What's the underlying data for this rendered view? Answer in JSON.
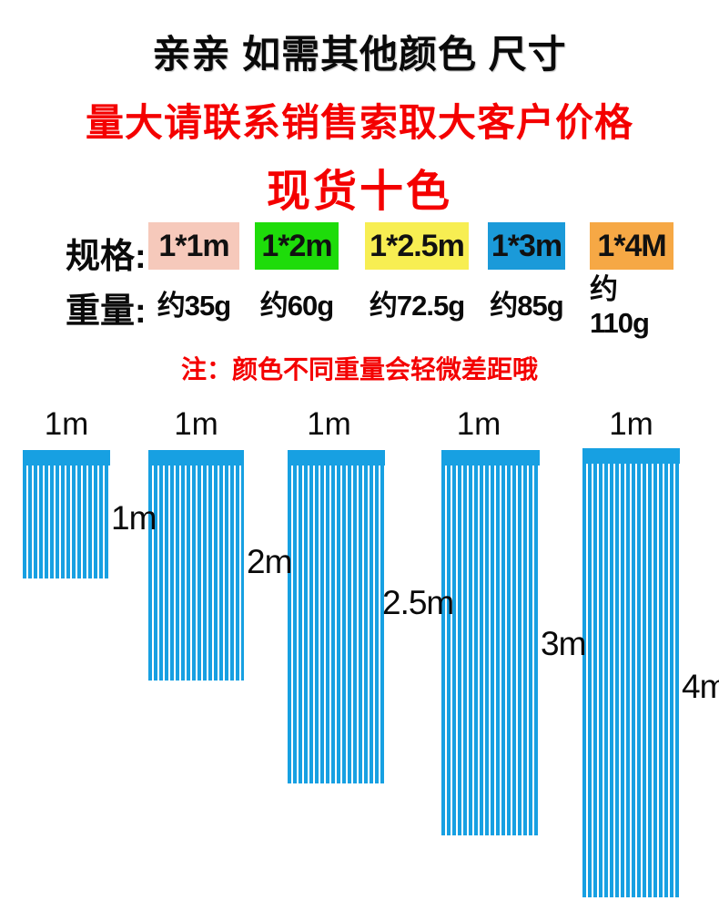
{
  "header": {
    "title": "亲亲 如需其他颜色 尺寸",
    "subtitle": "量大请联系销售索取大客户价格",
    "stock_line": "现货十色",
    "note": "注：颜色不同重量会轻微差距哦"
  },
  "colors": {
    "accent_red": "#f40000",
    "curtain_blue": "#17a0e2",
    "text_black": "#0a0a0a"
  },
  "spec_table": {
    "spec_label": "规格:",
    "weight_label": "重量:",
    "sizes": [
      {
        "label": "1*1m",
        "weight": "约35g",
        "swatch_color": "#f6c9bb"
      },
      {
        "label": "1*2m",
        "weight": "约60g",
        "swatch_color": "#1edc0a"
      },
      {
        "label": "1*2.5m",
        "weight": "约72.5g",
        "swatch_color": "#f7ee52"
      },
      {
        "label": "1*3m",
        "weight": "约85g",
        "swatch_color": "#1b9ad9"
      },
      {
        "label": "1*4M",
        "weight": "约110g",
        "swatch_color": "#f6a845"
      }
    ]
  },
  "diagram": {
    "curtains": [
      {
        "width_label": "1m",
        "height_label": "1m"
      },
      {
        "width_label": "1m",
        "height_label": "2m"
      },
      {
        "width_label": "1m",
        "height_label": "2.5m"
      },
      {
        "width_label": "1m",
        "height_label": "3m"
      },
      {
        "width_label": "1m",
        "height_label": "4m"
      }
    ]
  }
}
